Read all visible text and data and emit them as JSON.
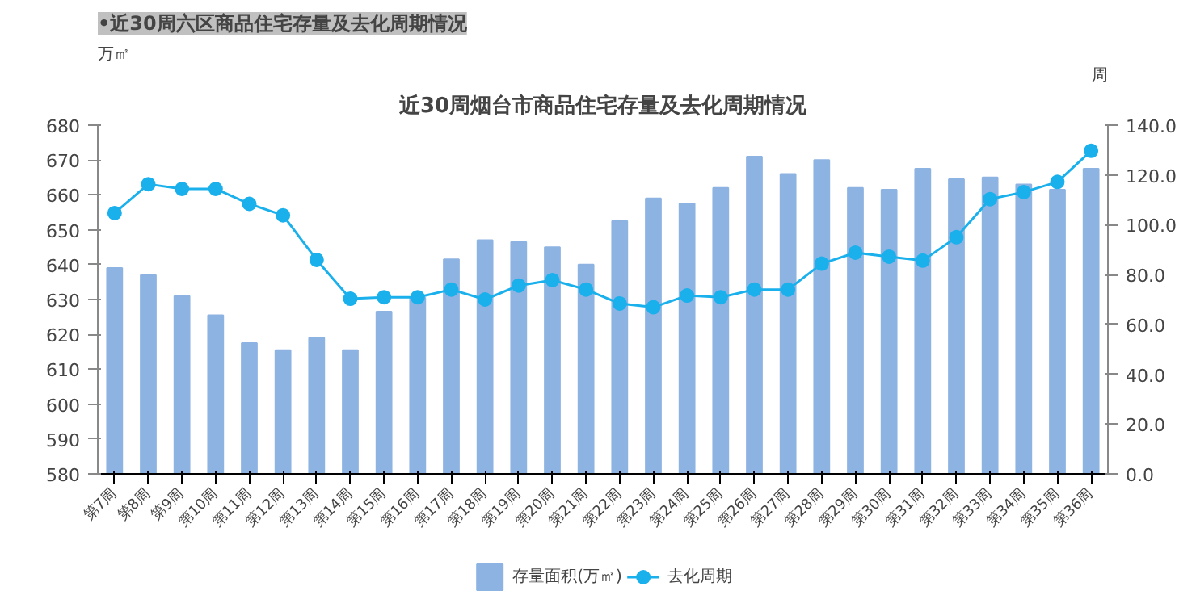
{
  "chart_data": {
    "type": "bar",
    "title": "近30周烟台市商品住宅存量及去化周期情况",
    "ylabel": "万㎡",
    "y2label": "周",
    "annotations": [
      "•近30周六区商品住宅存量及去化周期情况"
    ],
    "categories": [
      "第7周",
      "第8周",
      "第9周",
      "第10周",
      "第11周",
      "第12周",
      "第13周",
      "第14周",
      "第15周",
      "第16周",
      "第17周",
      "第18周",
      "第19周",
      "第20周",
      "第21周",
      "第22周",
      "第23周",
      "第24周",
      "第25周",
      "第26周",
      "第27周",
      "第28周",
      "第29周",
      "第30周",
      "第31周",
      "第32周",
      "第33周",
      "第34周",
      "第35周",
      "第36周"
    ],
    "series": [
      {
        "name": "存量面积(万㎡)",
        "color": "#8db3e2",
        "values": [
          639,
          637,
          631,
          625.5,
          617.5,
          615.5,
          619,
          615.5,
          626.5,
          630.5,
          641.5,
          647,
          646.5,
          645,
          640,
          652.5,
          659,
          657.5,
          662,
          671,
          666,
          670,
          662,
          661.5,
          667.5,
          664.5,
          665,
          663,
          661.5,
          667.5
        ]
      },
      {
        "name": "去化周期",
        "type": "line",
        "axis": "y2",
        "color": "#1ab0ec",
        "values": [
          104.7,
          116.3,
          114.4,
          114.4,
          108.4,
          103.8,
          85.9,
          70.3,
          70.9,
          70.9,
          74,
          70,
          75.6,
          77.8,
          74,
          68.4,
          66.9,
          71.6,
          70.9,
          74,
          74,
          84.4,
          88.8,
          87.2,
          85.6,
          95,
          110.3,
          113.1,
          117.2,
          129.7
        ]
      }
    ],
    "ylim": [
      580,
      680
    ],
    "yticks": [
      580,
      590,
      600,
      610,
      620,
      630,
      640,
      650,
      660,
      670,
      680
    ],
    "y2lim": [
      0,
      140
    ],
    "y2ticks": [
      {
        "value": 0,
        "label": "0.0"
      },
      {
        "value": 20,
        "label": "20.0"
      },
      {
        "value": 40,
        "label": "40.0"
      },
      {
        "value": 60,
        "label": "60.0"
      },
      {
        "value": 80,
        "label": "80.0"
      },
      {
        "value": 100,
        "label": "100.0"
      },
      {
        "value": 120,
        "label": "120.0"
      },
      {
        "value": 140,
        "label": "140.0"
      }
    ],
    "grid": false,
    "legend": "bottom",
    "marker": "circle"
  }
}
